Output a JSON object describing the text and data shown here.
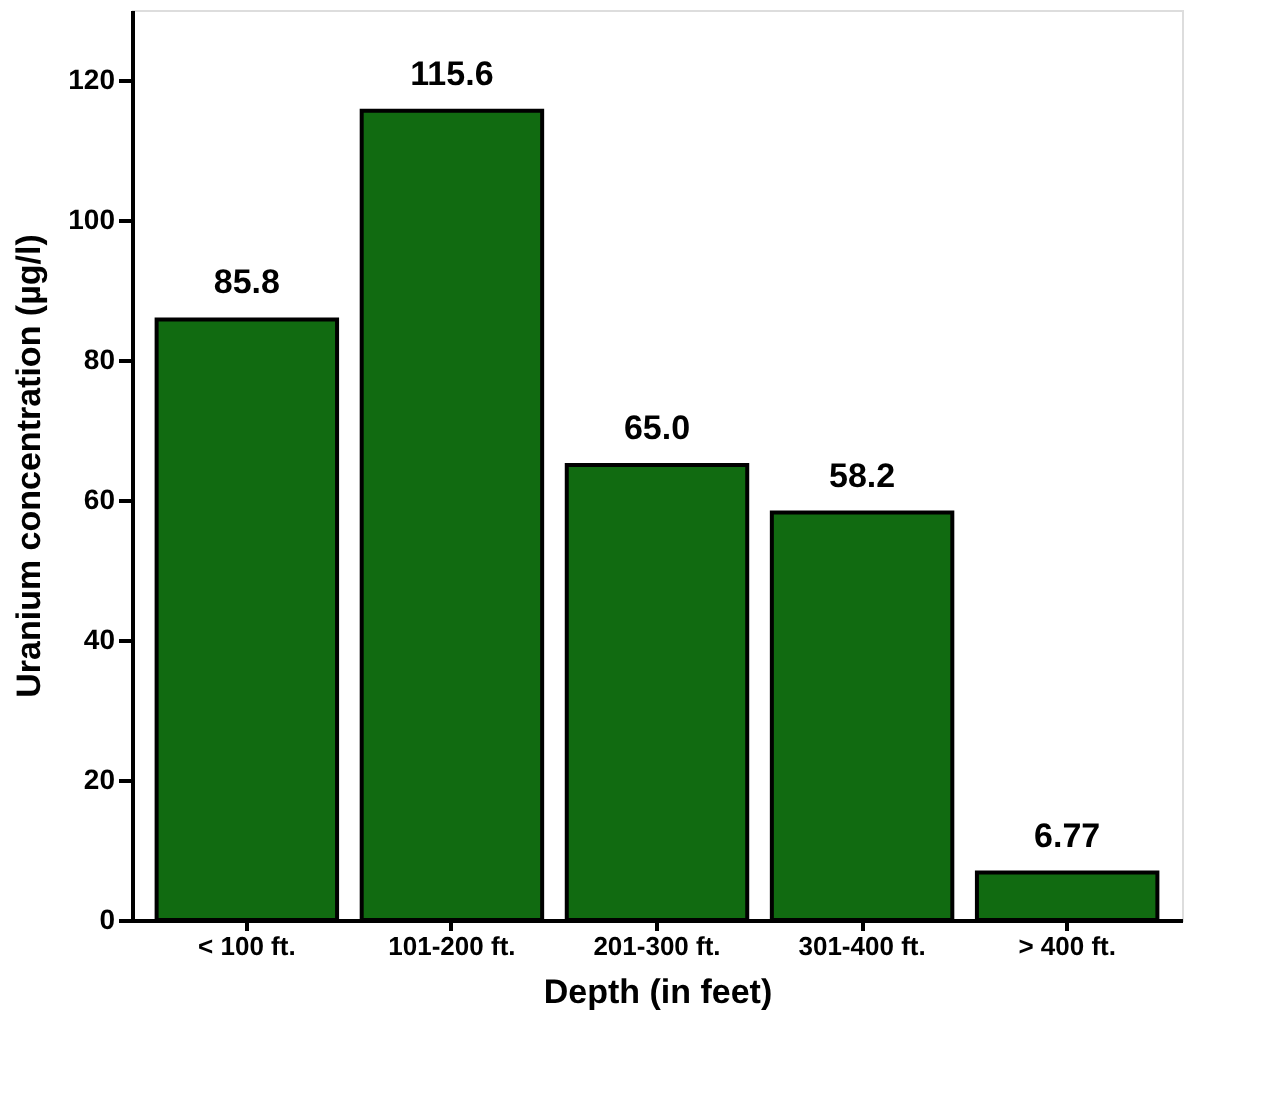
{
  "chart_data": {
    "type": "bar",
    "xlabel": "Depth (in feet)",
    "ylabel": "Uranium concentration (µg/l)",
    "categories": [
      "< 100 ft.",
      "101-200 ft.",
      "201-300 ft.",
      "301-400 ft.",
      "> 400 ft."
    ],
    "values": [
      85.8,
      115.6,
      65.0,
      58.2,
      6.77
    ],
    "value_labels": [
      "85.8",
      "115.6",
      "65.0",
      "58.2",
      "6.77"
    ],
    "color": "#116b11",
    "ylim": [
      0,
      130
    ],
    "yticks": [
      0,
      20,
      40,
      60,
      80,
      100,
      120
    ],
    "grid": false
  }
}
